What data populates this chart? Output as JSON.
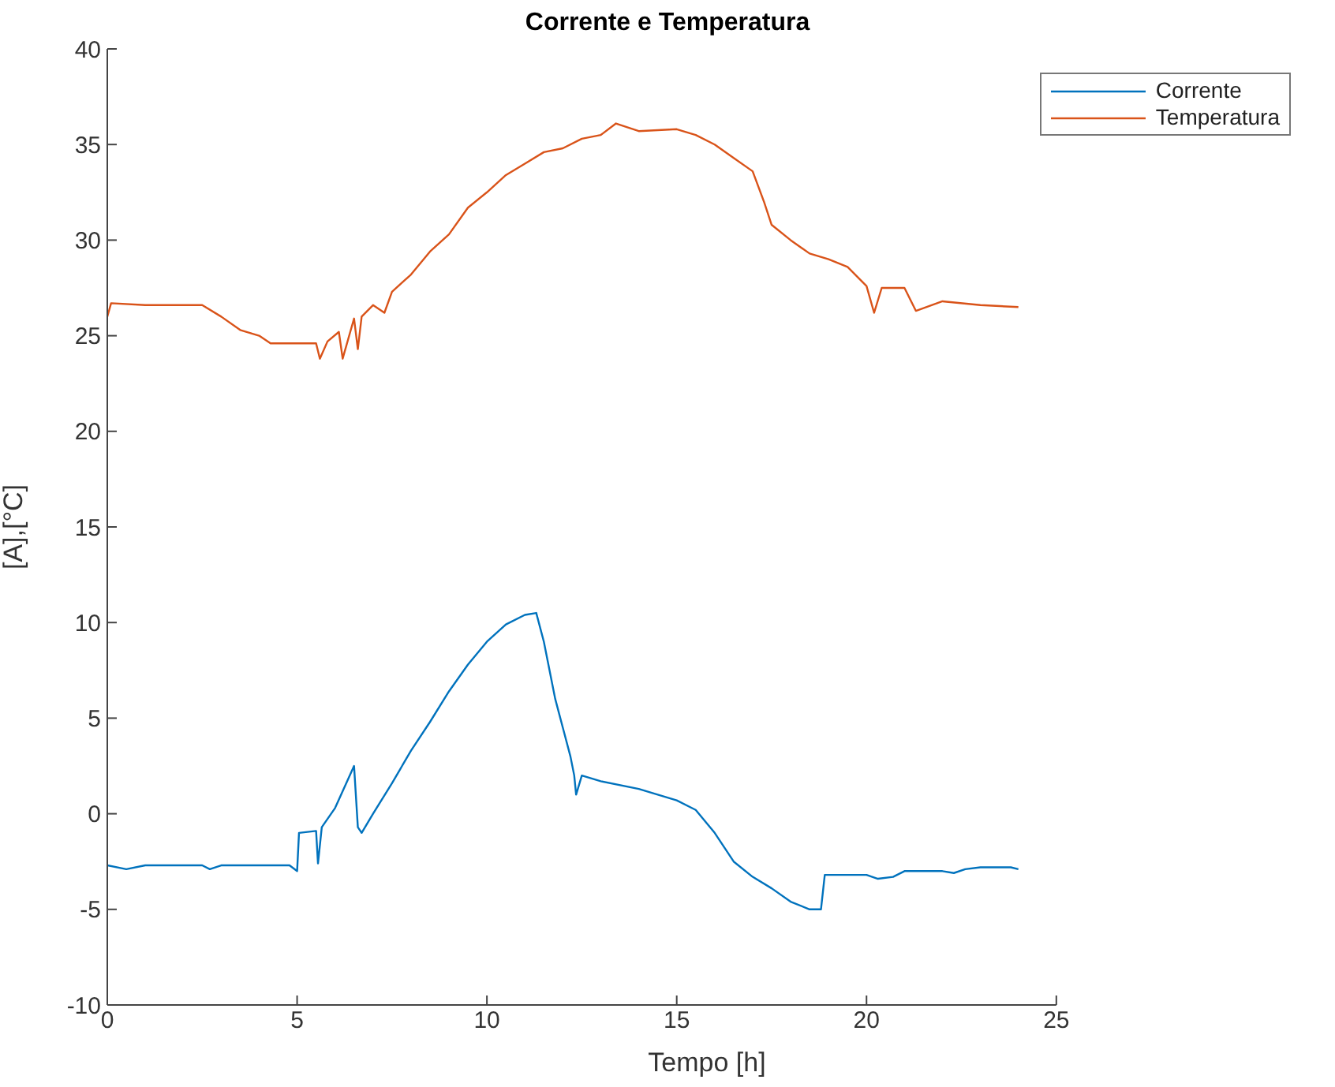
{
  "chart_data": {
    "type": "line",
    "title": "Corrente e Temperatura",
    "xlabel": "Tempo [h]",
    "ylabel": "[A],[°C]",
    "xlim": [
      0,
      25
    ],
    "xticks": [
      0,
      5,
      10,
      15,
      20,
      25
    ],
    "ylim": [
      -10,
      40
    ],
    "yticks": [
      -10,
      -5,
      0,
      5,
      10,
      15,
      20,
      25,
      30,
      35,
      40
    ],
    "grid": false,
    "legend": "top right",
    "marker": "none",
    "line_style": "solid",
    "series": [
      {
        "name": "Corrente",
        "color": "#0072bd",
        "x": [
          0,
          0.5,
          1,
          2.5,
          2.7,
          3,
          4.8,
          5,
          5.05,
          5.5,
          5.55,
          5.65,
          6,
          6.5,
          6.6,
          6.7,
          7,
          7.5,
          8,
          8.5,
          9,
          9.5,
          10,
          10.5,
          11,
          11.3,
          11.5,
          11.8,
          12,
          12.2,
          12.3,
          12.35,
          12.5,
          13,
          14,
          15,
          15.5,
          16,
          16.5,
          17,
          17.5,
          18,
          18.5,
          18.8,
          18.9,
          19.5,
          20,
          20.3,
          20.7,
          21,
          22,
          22.3,
          22.6,
          23,
          23.8,
          24
        ],
        "values": [
          -2.7,
          -2.9,
          -2.7,
          -2.7,
          -2.9,
          -2.7,
          -2.7,
          -3.0,
          -1.0,
          -0.9,
          -2.6,
          -0.7,
          0.3,
          2.5,
          -0.7,
          -1.0,
          0,
          1.6,
          3.3,
          4.8,
          6.4,
          7.8,
          9.0,
          9.9,
          10.4,
          10.5,
          9.0,
          6.0,
          4.5,
          3.0,
          2.0,
          1.0,
          2.0,
          1.7,
          1.3,
          0.7,
          0.2,
          -1.0,
          -2.5,
          -3.3,
          -3.9,
          -4.6,
          -5.0,
          -5.0,
          -3.2,
          -3.2,
          -3.2,
          -3.4,
          -3.3,
          -3.0,
          -3.0,
          -3.1,
          -2.9,
          -2.8,
          -2.8,
          -2.9
        ]
      },
      {
        "name": "Temperatura",
        "color": "#d95319",
        "x": [
          0,
          0.1,
          1,
          1.5,
          2,
          2.5,
          3,
          3.5,
          4,
          4.3,
          5,
          5.5,
          5.6,
          5.8,
          6.1,
          6.2,
          6.5,
          6.6,
          6.7,
          7,
          7.3,
          7.5,
          8,
          8.5,
          9,
          9.5,
          10,
          10.5,
          11,
          11.5,
          12,
          12.5,
          13,
          13.4,
          14,
          15,
          15.5,
          16,
          16.5,
          17,
          17.3,
          17.5,
          18,
          18.5,
          19,
          19.5,
          20,
          20.2,
          20.4,
          21,
          21.3,
          22,
          23,
          24
        ],
        "values": [
          26.0,
          26.7,
          26.6,
          26.6,
          26.6,
          26.6,
          26.0,
          25.3,
          25.0,
          24.6,
          24.6,
          24.6,
          23.8,
          24.7,
          25.2,
          23.8,
          25.9,
          24.3,
          26.0,
          26.6,
          26.2,
          27.3,
          28.2,
          29.4,
          30.3,
          31.7,
          32.5,
          33.4,
          34.0,
          34.6,
          34.8,
          35.3,
          35.5,
          36.1,
          35.7,
          35.8,
          35.5,
          35.0,
          34.3,
          33.6,
          32.0,
          30.8,
          30.0,
          29.3,
          29.0,
          28.6,
          27.6,
          26.2,
          27.5,
          27.5,
          26.3,
          26.8,
          26.6,
          26.5
        ]
      }
    ]
  }
}
